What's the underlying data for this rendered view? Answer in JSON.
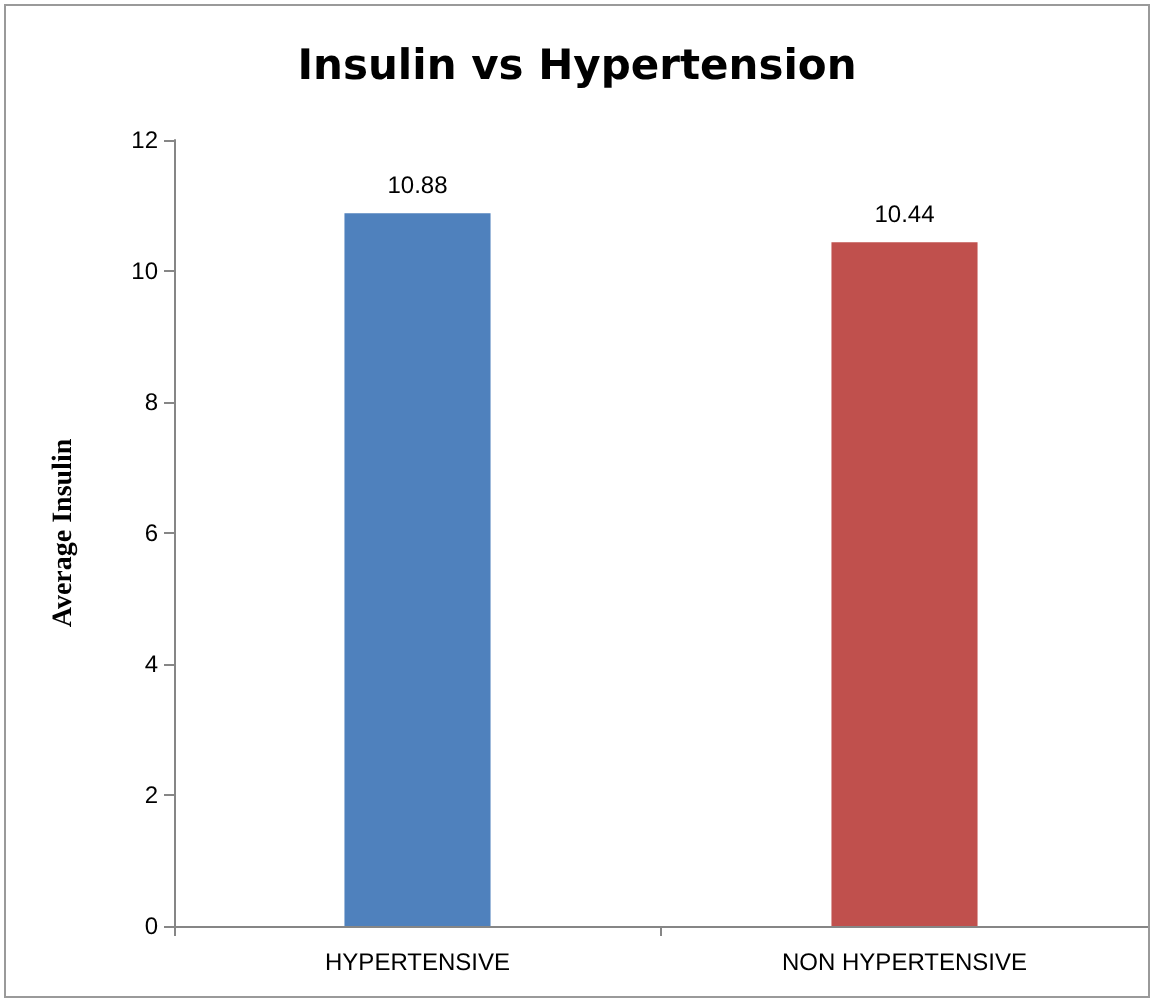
{
  "chart_data": {
    "type": "bar",
    "title": "Insulin vs Hypertension",
    "ylabel": "Average Insulin",
    "categories": [
      "HYPERTENSIVE",
      "NON HYPERTENSIVE"
    ],
    "values": [
      10.88,
      10.44
    ],
    "colors": [
      "#4f81bd",
      "#c0504d"
    ],
    "ylim": [
      0,
      12
    ],
    "yticks": [
      0,
      2,
      4,
      6,
      8,
      10,
      12
    ],
    "data_labels": true
  }
}
